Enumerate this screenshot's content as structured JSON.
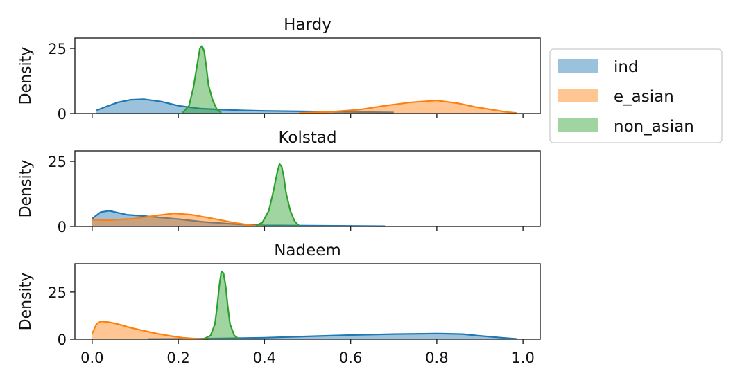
{
  "chart_data": {
    "type": "area",
    "description_kind": "stacked density panels (histogram + kde)",
    "x_ticks": [
      0.0,
      0.2,
      0.4,
      0.6,
      0.8,
      1.0
    ],
    "x_tick_labels": [
      "0.0",
      "0.2",
      "0.4",
      "0.6",
      "0.8",
      "1.0"
    ],
    "xlim": [
      -0.04,
      1.04
    ],
    "ylabel": "Density",
    "legend": {
      "position": "right",
      "entries": [
        {
          "name": "ind",
          "color": "#1f77b4"
        },
        {
          "name": "e_asian",
          "color": "#ff7f0e"
        },
        {
          "name": "non_asian",
          "color": "#2ca02c"
        }
      ]
    },
    "panels": [
      {
        "title": "Hardy",
        "ylim": [
          0,
          29
        ],
        "y_ticks": [
          0,
          25
        ],
        "y_tick_labels": [
          "0",
          "25"
        ],
        "series": [
          {
            "name": "ind",
            "color": "#1f77b4",
            "x": [
              0.01,
              0.03,
              0.06,
              0.09,
              0.12,
              0.16,
              0.2,
              0.25,
              0.3,
              0.35,
              0.4,
              0.5,
              0.6,
              0.7
            ],
            "y": [
              1.2,
              2.5,
              4.3,
              5.3,
              5.5,
              4.6,
              3.0,
              1.9,
              1.5,
              1.2,
              1.0,
              0.8,
              0.6,
              0.4
            ]
          },
          {
            "name": "e_asian",
            "color": "#ff7f0e",
            "x": [
              0.48,
              0.55,
              0.62,
              0.68,
              0.74,
              0.8,
              0.85,
              0.89,
              0.93,
              0.96,
              0.985
            ],
            "y": [
              0.2,
              0.6,
              1.5,
              3.0,
              4.3,
              5.0,
              3.9,
              2.5,
              1.4,
              0.6,
              0.2
            ]
          },
          {
            "name": "non_asian",
            "color": "#2ca02c",
            "x": [
              0.21,
              0.225,
              0.235,
              0.245,
              0.25,
              0.255,
              0.26,
              0.265,
              0.27,
              0.28,
              0.29,
              0.3
            ],
            "y": [
              0.3,
              3.0,
              10.0,
              20.0,
              25.0,
              26.0,
              24.0,
              18.0,
              11.0,
              5.0,
              1.5,
              0.3
            ]
          }
        ]
      },
      {
        "title": "Kolstad",
        "ylim": [
          0,
          29
        ],
        "y_ticks": [
          0,
          25
        ],
        "y_tick_labels": [
          "0",
          "25"
        ],
        "series": [
          {
            "name": "ind",
            "color": "#1f77b4",
            "x": [
              0.0,
              0.02,
              0.04,
              0.08,
              0.12,
              0.2,
              0.26,
              0.32,
              0.36,
              0.4,
              0.5,
              0.6,
              0.68
            ],
            "y": [
              3.0,
              5.5,
              6.0,
              4.5,
              4.0,
              2.8,
              1.7,
              1.0,
              0.6,
              0.4,
              0.3,
              0.2,
              0.1
            ]
          },
          {
            "name": "e_asian",
            "color": "#ff7f0e",
            "x": [
              0.0,
              0.04,
              0.1,
              0.15,
              0.19,
              0.23,
              0.28,
              0.33,
              0.37,
              0.4
            ],
            "y": [
              2.5,
              2.4,
              3.0,
              4.2,
              5.0,
              4.5,
              3.0,
              1.4,
              0.4,
              0.1
            ]
          },
          {
            "name": "non_asian",
            "color": "#2ca02c",
            "x": [
              0.38,
              0.395,
              0.41,
              0.42,
              0.43,
              0.435,
              0.44,
              0.445,
              0.45,
              0.46,
              0.47,
              0.48
            ],
            "y": [
              0.3,
              1.5,
              6.0,
              13.0,
              21.0,
              24.0,
              23.0,
              19.0,
              13.0,
              6.0,
              2.0,
              0.3
            ]
          }
        ]
      },
      {
        "title": "Nadeem",
        "ylim": [
          0,
          40
        ],
        "y_ticks": [
          0,
          25
        ],
        "y_tick_labels": [
          "0",
          "25"
        ],
        "series": [
          {
            "name": "ind",
            "color": "#1f77b4",
            "x": [
              0.13,
              0.2,
              0.3,
              0.4,
              0.5,
              0.6,
              0.7,
              0.8,
              0.86,
              0.9,
              0.95,
              0.985
            ],
            "y": [
              0.1,
              0.2,
              0.4,
              0.8,
              1.5,
              2.2,
              2.7,
              3.0,
              2.7,
              1.8,
              0.8,
              0.2
            ]
          },
          {
            "name": "e_asian",
            "color": "#ff7f0e",
            "x": [
              0.0,
              0.01,
              0.02,
              0.04,
              0.06,
              0.09,
              0.12,
              0.15,
              0.18,
              0.21,
              0.24,
              0.27
            ],
            "y": [
              3.0,
              8.0,
              9.5,
              9.0,
              8.0,
              6.0,
              4.5,
              3.0,
              1.8,
              0.8,
              0.3,
              0.0
            ]
          },
          {
            "name": "non_asian",
            "color": "#2ca02c",
            "x": [
              0.26,
              0.275,
              0.285,
              0.29,
              0.295,
              0.3,
              0.305,
              0.31,
              0.315,
              0.32,
              0.33,
              0.34
            ],
            "y": [
              0.3,
              2.0,
              8.0,
              17.0,
              28.0,
              36.0,
              35.0,
              28.0,
              17.0,
              8.0,
              2.0,
              0.3
            ]
          }
        ]
      }
    ]
  }
}
